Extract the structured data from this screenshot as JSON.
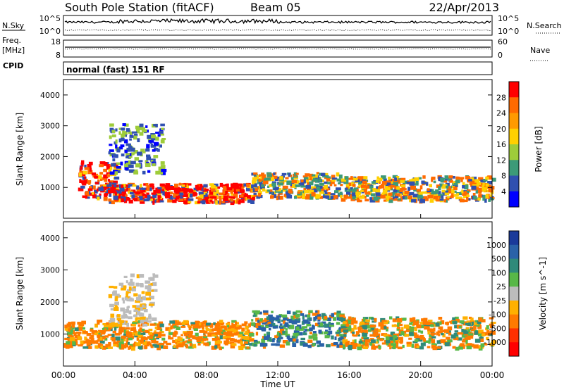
{
  "header": {
    "station": "South Pole Station (fitACF)",
    "beam": "Beam 05",
    "date": "22/Apr/2013"
  },
  "top_panels": {
    "nsky_label": "N.Sky",
    "nsky_ticks": [
      "10^5",
      "10^0"
    ],
    "nsearch_label": "N.Search",
    "nsearch_ticks": [
      "10^5",
      "10^0"
    ],
    "freq_label": "Freq.",
    "freq_unit": "[MHz]",
    "freq_ticks": [
      "18",
      "8"
    ],
    "nave_label": "Nave",
    "nave_ticks": [
      "60",
      "0"
    ],
    "cpid_label": "CPID",
    "cpid_value": "normal (fast) 151 RF"
  },
  "chart_data": [
    {
      "type": "heatmap",
      "panel": "power",
      "xlabel": "",
      "ylabel": "Slant Range [km]",
      "xlim": [
        0,
        24
      ],
      "ylim": [
        0,
        4500
      ],
      "y_ticks": [
        "1000",
        "2000",
        "3000",
        "4000"
      ],
      "colorbar": {
        "label": "Power [dB]",
        "ticks": [
          "28",
          "24",
          "20",
          "16",
          "12",
          "8",
          "4"
        ],
        "colors": [
          "#ff0000",
          "#ff6a00",
          "#ff9a00",
          "#ffd000",
          "#9ecc3a",
          "#3c9a78",
          "#3050b0",
          "#0000ff"
        ]
      },
      "echo_regions": [
        {
          "t0": 0.8,
          "t1": 3.0,
          "r0": 700,
          "r1": 1900,
          "level": "high"
        },
        {
          "t0": 2.2,
          "t1": 10.5,
          "r0": 550,
          "r1": 1150,
          "level": "high"
        },
        {
          "t0": 10.5,
          "t1": 15.5,
          "r0": 700,
          "r1": 1500,
          "level": "mid"
        },
        {
          "t0": 15.5,
          "t1": 24,
          "r0": 600,
          "r1": 1400,
          "level": "mid"
        },
        {
          "t0": 2.5,
          "t1": 5.5,
          "r0": 1500,
          "r1": 3100,
          "level": "low"
        }
      ]
    },
    {
      "type": "heatmap",
      "panel": "velocity",
      "xlabel": "Time UT",
      "ylabel": "Slant Range [km]",
      "xlim": [
        0,
        24
      ],
      "ylim": [
        0,
        4500
      ],
      "x_ticks": [
        "00:00",
        "04:00",
        "08:00",
        "12:00",
        "16:00",
        "20:00",
        "00:00"
      ],
      "y_ticks": [
        "1000",
        "2000",
        "3000",
        "4000"
      ],
      "colorbar": {
        "label": "Velocity [m s^-1]",
        "ticks": [
          "1000",
          "500",
          "100",
          "25",
          "-25",
          "-100",
          "-500",
          "-1000"
        ],
        "colors": [
          "#1a3a9a",
          "#2a62a8",
          "#2f8a7a",
          "#58b848",
          "#bcbcbc",
          "#ffb000",
          "#ff7a00",
          "#ff3000",
          "#ff0000"
        ]
      },
      "echo_regions": [
        {
          "t0": 0.0,
          "t1": 10.5,
          "r0": 600,
          "r1": 1450,
          "level": "negative"
        },
        {
          "t0": 10.5,
          "t1": 15.5,
          "r0": 650,
          "r1": 1750,
          "level": "positive"
        },
        {
          "t0": 15.5,
          "t1": 24,
          "r0": 600,
          "r1": 1550,
          "level": "mixed"
        },
        {
          "t0": 2.5,
          "t1": 5.0,
          "r0": 1300,
          "r1": 2900,
          "level": "ground"
        }
      ]
    }
  ],
  "colors": {
    "axis": "#000000"
  }
}
